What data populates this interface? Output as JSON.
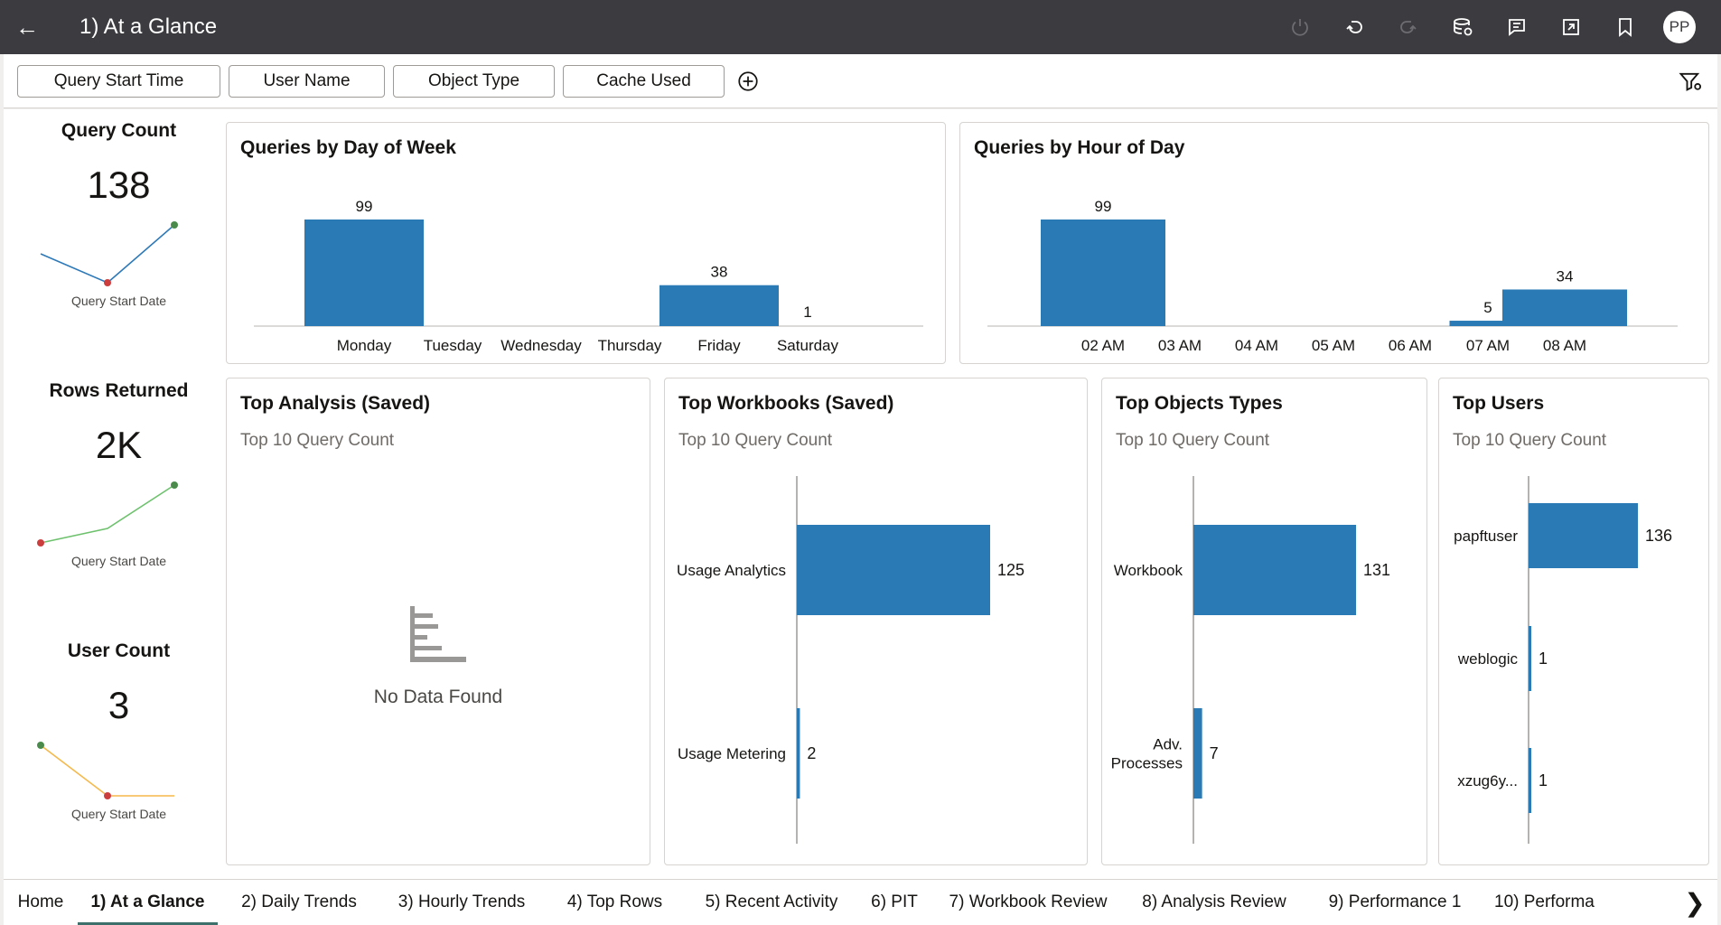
{
  "header": {
    "back_icon": "arrow-left-icon",
    "title": "1) At a Glance",
    "tools": [
      {
        "name": "refresh-icon",
        "disabled": true
      },
      {
        "name": "undo-icon",
        "disabled": false
      },
      {
        "name": "redo-icon",
        "disabled": true
      },
      {
        "name": "data-refresh-icon",
        "disabled": false
      },
      {
        "name": "comments-icon",
        "disabled": false
      },
      {
        "name": "export-icon",
        "disabled": false
      },
      {
        "name": "bookmark-icon",
        "disabled": false
      }
    ],
    "avatar_initials": "PP"
  },
  "filters": {
    "pills": [
      "Query Start Time",
      "User Name",
      "Object Type",
      "Cache Used"
    ],
    "add_icon": "plus-circle-icon",
    "filter_icon": "filter-settings-icon"
  },
  "kpis": [
    {
      "title": "Query Count",
      "value": "138",
      "axis_label": "Query Start Date",
      "color": "#2d79b8",
      "spark": [
        0.5,
        0.0,
        1.0
      ]
    },
    {
      "title": "Rows Returned",
      "value": "2K",
      "axis_label": "Query Start Date",
      "color": "#6dc16d",
      "spark": [
        0.0,
        0.25,
        1.0
      ]
    },
    {
      "title": "User Count",
      "value": "3",
      "axis_label": "Query Start Date",
      "color": "#f5b94b",
      "spark": [
        1.0,
        0.0,
        0.0
      ]
    }
  ],
  "colors": {
    "bar": "#2a7ab5",
    "point_high": "#4a8a4a",
    "point_low": "#cc3d3d"
  },
  "chart_data": [
    {
      "type": "bar",
      "title": "Queries by Day of Week",
      "categories": [
        "Monday",
        "Tuesday",
        "Wednesday",
        "Thursday",
        "Friday",
        "Saturday"
      ],
      "values": [
        99,
        null,
        null,
        null,
        38,
        1
      ]
    },
    {
      "type": "bar",
      "title": "Queries by Hour of Day",
      "categories": [
        "02 AM",
        "03 AM",
        "04 AM",
        "05 AM",
        "06 AM",
        "07 AM",
        "08 AM"
      ],
      "values": [
        99,
        null,
        null,
        null,
        null,
        5,
        34
      ]
    },
    {
      "type": "bar",
      "orientation": "horizontal",
      "title": "Top Workbooks (Saved)",
      "subtitle": "Top 10 Query Count",
      "categories": [
        "Usage Analytics",
        "Usage Metering"
      ],
      "values": [
        125,
        2
      ]
    },
    {
      "type": "bar",
      "orientation": "horizontal",
      "title": "Top Objects Types",
      "subtitle": "Top 10 Query Count",
      "categories": [
        "Workbook",
        "Adv. Processes"
      ],
      "values": [
        131,
        7
      ]
    },
    {
      "type": "bar",
      "orientation": "horizontal",
      "title": "Top Users",
      "subtitle": "Top 10 Query Count",
      "categories": [
        "papftuser",
        "weblogic",
        "xzug6y..."
      ],
      "values": [
        136,
        1,
        1
      ]
    }
  ],
  "analysis_panel": {
    "title": "Top Analysis (Saved)",
    "subtitle": "Top 10 Query Count",
    "empty_text": "No Data Found",
    "empty_icon": "empty-bars-icon"
  },
  "tabs": {
    "items": [
      "Home",
      "1) At a Glance",
      "2) Daily Trends",
      "3) Hourly Trends",
      "4) Top Rows",
      "5) Recent Activity",
      "6) PIT",
      "7) Workbook Review",
      "8) Analysis Review",
      "9) Performance 1",
      "10) Performa"
    ],
    "active": 1,
    "scroll_icon": "chevron-right-icon"
  }
}
